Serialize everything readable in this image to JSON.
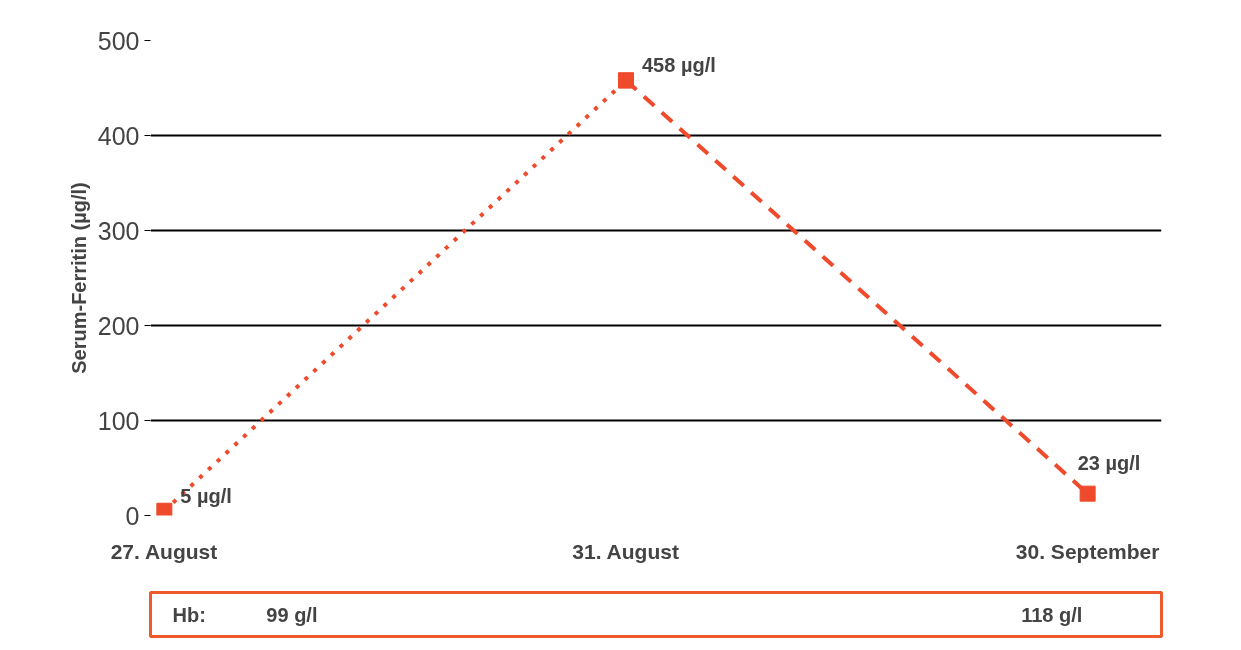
{
  "chart_data": {
    "type": "line",
    "ylabel": "Serum-Ferritin (µg/l)",
    "categories": [
      "27. August",
      "31. August",
      "30. September"
    ],
    "series": [
      {
        "color": "#ee4a2b",
        "values": [
          5,
          458,
          null
        ],
        "line_style": "dotted",
        "value_labels": [
          "5 µg/l",
          "458 µg/l",
          null
        ]
      },
      {
        "color": "#ee4a2b",
        "values": [
          null,
          458,
          23
        ],
        "line_style": "dashed",
        "value_labels": [
          null,
          null,
          "23 µg/l"
        ]
      }
    ],
    "ylim": [
      0,
      500
    ],
    "yticks": [
      0,
      100,
      200,
      300,
      400,
      500
    ],
    "grid": "y",
    "marker": "square",
    "annotations": [
      "Hb:",
      "99 g/l",
      "118 g/l"
    ]
  }
}
